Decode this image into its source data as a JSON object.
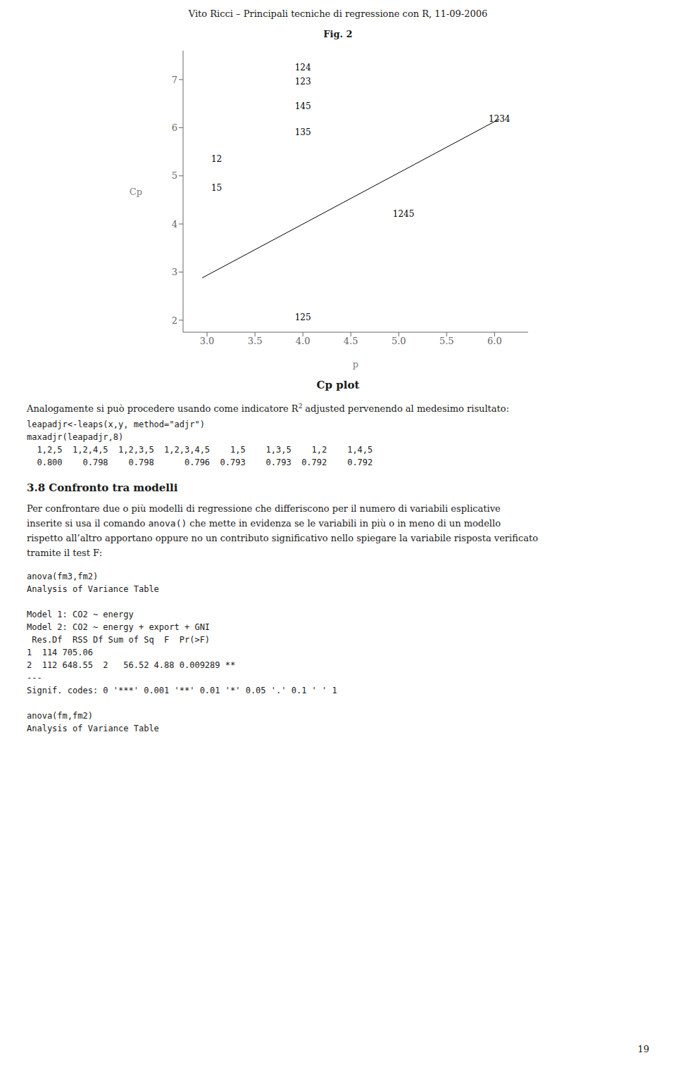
{
  "chart_data": {
    "type": "line",
    "page_header": "Vito Ricci – Principali tecniche di regressione con R, 11-09-2006",
    "title": "Fig. 2",
    "xlabel": "p",
    "ylabel": "Cp",
    "xlim": [
      2.75,
      6.35
    ],
    "ylim": [
      1.75,
      7.6
    ],
    "xticks": [
      {
        "value": 3.0,
        "label": "3.0"
      },
      {
        "value": 3.5,
        "label": "3.5"
      },
      {
        "value": 4.0,
        "label": "4.0"
      },
      {
        "value": 4.5,
        "label": "4.5"
      },
      {
        "value": 5.0,
        "label": "5.0"
      },
      {
        "value": 5.5,
        "label": "5.5"
      },
      {
        "value": 6.0,
        "label": "6.0"
      }
    ],
    "yticks": [
      2,
      3,
      4,
      5,
      6,
      7
    ],
    "x": [
      2.95,
      6.05
    ],
    "values": [
      2.88,
      6.18
    ],
    "color": "#000000",
    "annotations": [
      {
        "x": 4.0,
        "y": 7.25,
        "text": "124"
      },
      {
        "x": 4.0,
        "y": 6.95,
        "text": "123"
      },
      {
        "x": 4.0,
        "y": 6.45,
        "text": "145"
      },
      {
        "x": 4.0,
        "y": 5.9,
        "text": "135"
      },
      {
        "x": 3.1,
        "y": 5.35,
        "text": "12"
      },
      {
        "x": 3.1,
        "y": 4.75,
        "text": "15"
      },
      {
        "x": 5.05,
        "y": 4.2,
        "text": "1245"
      },
      {
        "x": 4.0,
        "y": 2.05,
        "text": "125"
      },
      {
        "x": 6.05,
        "y": 6.18,
        "text": "1234"
      }
    ],
    "caption": "Cp plot",
    "body_text_1": [
      "Analogamente si può procedere usando come indicatore R",
      {
        "sup": "2"
      },
      "adjusted pervenendo al medesimo risultato:"
    ],
    "code_block_1": [
      "leapadjr<-leaps(x,y, method=\"adjr\")",
      "maxadjr(leapadjr,8)",
      "  1,2,5  1,2,4,5  1,2,3,5  1,2,3,4,5    1,5    1,3,5    1,2    1,4,5",
      "  0.800    0.798    0.798      0.796  0.793    0.793  0.792    0.792"
    ],
    "section_heading": "3.8 Confronto tra modelli",
    "paragraph_lines": [
      [
        "Per confrontare due o più modelli di regressione che differiscono per il numero di variabili esplicative"
      ],
      [
        "inserite si usa il comando ",
        {
          "code": "anova()"
        },
        "che mette in evidenza se le variabili in più o in meno di un modello"
      ],
      [
        "rispetto all’altro apportano oppure no un contributo significativo nello spiegare la variabile risposta verificato"
      ],
      [
        "tramite il test F:"
      ]
    ],
    "code_block_2": [
      "anova(fm3,fm2)",
      "Analysis of Variance Table",
      "",
      "Model 1: CO2 ~ energy",
      "Model 2: CO2 ~ energy + export + GNI",
      " Res.Df  RSS Df Sum of Sq  F  Pr(>F)",
      "1  114 705.06",
      "2  112 648.55  2   56.52 4.88 0.009289 **",
      "---",
      "Signif. codes: 0 '***' 0.001 '**' 0.01 '*' 0.05 '.' 0.1 ' ' 1",
      "",
      "anova(fm,fm2)",
      "Analysis of Variance Table"
    ],
    "page_number": "19",
    "background_color": "#ffffff",
    "text_color": "#1a1a1a"
  }
}
